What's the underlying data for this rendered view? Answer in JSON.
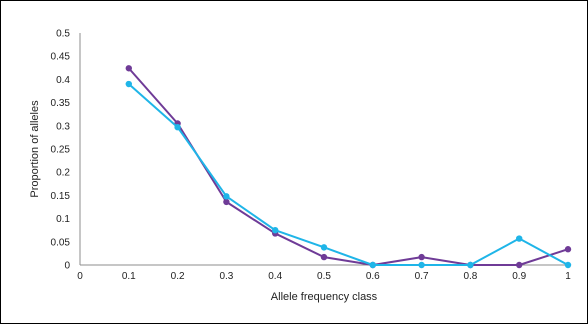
{
  "chart_data": {
    "type": "line",
    "title": "",
    "xlabel": "Allele frequency class",
    "ylabel": "Proportion of alleles",
    "xlim": [
      0,
      1
    ],
    "ylim": [
      0,
      0.5
    ],
    "x_ticks": [
      "0",
      "0.1",
      "0.2",
      "0.3",
      "0.4",
      "0.5",
      "0.6",
      "0.7",
      "0.8",
      "0.9",
      "1"
    ],
    "y_ticks": [
      "0",
      "0.05",
      "0.1",
      "0.15",
      "0.2",
      "0.25",
      "0.3",
      "0.35",
      "0.4",
      "0.45",
      "0.5"
    ],
    "grid": false,
    "legend": "none",
    "x": [
      0.1,
      0.2,
      0.3,
      0.4,
      0.5,
      0.6,
      0.7,
      0.8,
      0.9,
      1.0
    ],
    "series": [
      {
        "color": "#6f3b97",
        "values": [
          0.424,
          0.305,
          0.136,
          0.068,
          0.017,
          0.0,
          0.017,
          0.0,
          0.0,
          0.034
        ]
      },
      {
        "color": "#1fb5e8",
        "values": [
          0.39,
          0.297,
          0.148,
          0.075,
          0.038,
          0.0,
          0.0,
          0.0,
          0.057,
          0.0
        ]
      }
    ]
  }
}
